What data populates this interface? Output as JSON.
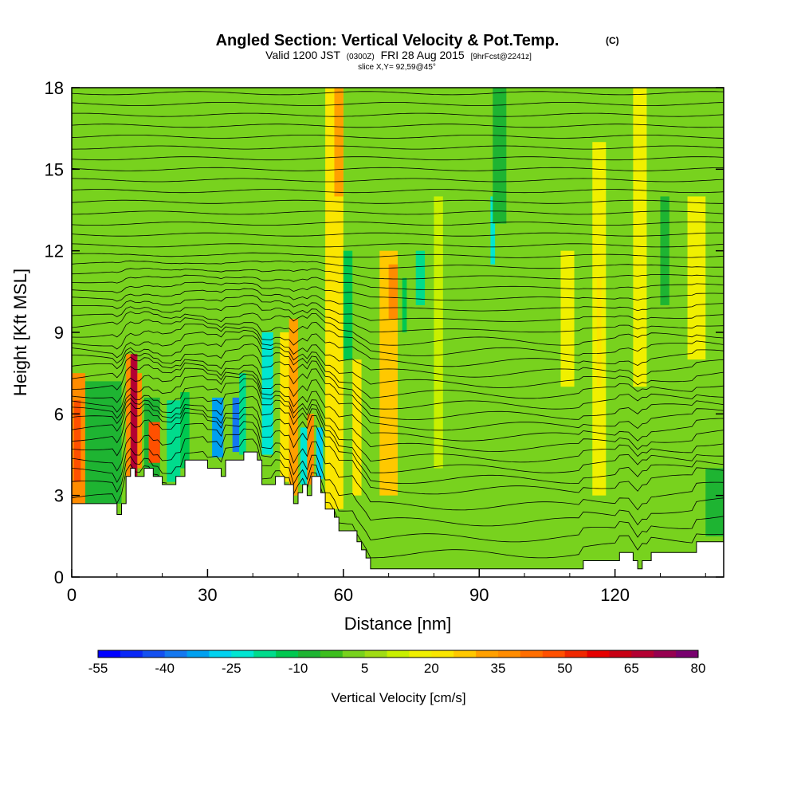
{
  "chart_data": {
    "type": "heatmap",
    "title": "Angled Section: Vertical Velocity & Pot.Temp.",
    "title_unit": "(C)",
    "subtitle_parts": [
      "Valid 1200 JST",
      "(0300Z)",
      "FRI 28 Aug 2015",
      "[9hrFcst@2241z]"
    ],
    "slice_label": "slice X,Y= 92,59@45°",
    "xlabel": "Distance [nm]",
    "ylabel": "Height [Kft MSL]",
    "xlim": [
      0,
      144
    ],
    "ylim": [
      0,
      18
    ],
    "x_ticks": [
      "0",
      "30",
      "60",
      "90",
      "120"
    ],
    "y_ticks": [
      "0",
      "3",
      "6",
      "9",
      "12",
      "15",
      "18"
    ],
    "colorbar": {
      "label": "Vertical Velocity [cm/s]",
      "tick_labels": [
        "-55",
        "-40",
        "-25",
        "-10",
        "5",
        "20",
        "35",
        "50",
        "65",
        "80"
      ],
      "min": -55,
      "max": 80,
      "step": 5,
      "colors": [
        "#0000ff",
        "#0a28f6",
        "#1450f0",
        "#1478f0",
        "#00a0f0",
        "#00d2f0",
        "#00e6d2",
        "#00dc8c",
        "#00c850",
        "#1eb432",
        "#3cbe1e",
        "#78d21e",
        "#a0dc14",
        "#c8f000",
        "#f0f000",
        "#fae600",
        "#ffc800",
        "#ffa000",
        "#ff8c00",
        "#ff6e00",
        "#ff5000",
        "#f02800",
        "#e60000",
        "#c80014",
        "#b40032",
        "#960050",
        "#78006e"
      ]
    },
    "velocity_cells": [
      {
        "x0": 0,
        "x1": 3,
        "y0": 2.7,
        "y1": 7.5,
        "v": 35
      },
      {
        "x0": 0.5,
        "x1": 2,
        "y0": 3.5,
        "y1": 6.5,
        "v": 45
      },
      {
        "x0": 3,
        "x1": 11,
        "y0": 2.7,
        "y1": 7.2,
        "v": -10
      },
      {
        "x0": 12,
        "x1": 13,
        "y0": 3.7,
        "y1": 8.2,
        "v": 35
      },
      {
        "x0": 13,
        "x1": 14.5,
        "y0": 3.7,
        "y1": 8.2,
        "v": 65
      },
      {
        "x0": 14.5,
        "x1": 15.5,
        "y0": 4,
        "y1": 7.5,
        "v": 35
      },
      {
        "x0": 16,
        "x1": 19.5,
        "y0": 3.7,
        "y1": 6.6,
        "v": -10
      },
      {
        "x0": 17,
        "x1": 19.5,
        "y0": 4.2,
        "y1": 5.7,
        "v": 45
      },
      {
        "x0": 21,
        "x1": 24,
        "y0": 3.5,
        "y1": 6.5,
        "v": -20
      },
      {
        "x0": 24,
        "x1": 26,
        "y0": 4,
        "y1": 6.8,
        "v": -15
      },
      {
        "x0": 31,
        "x1": 33.5,
        "y0": 4.4,
        "y1": 6.6,
        "v": -35
      },
      {
        "x0": 35.5,
        "x1": 37,
        "y0": 4.6,
        "y1": 6.6,
        "v": -40
      },
      {
        "x0": 37,
        "x1": 38.5,
        "y0": 4.5,
        "y1": 7.5,
        "v": -20
      },
      {
        "x0": 42,
        "x1": 44.5,
        "y0": 4.5,
        "y1": 9,
        "v": -25
      },
      {
        "x0": 46,
        "x1": 48,
        "y0": 3.5,
        "y1": 9,
        "v": 20
      },
      {
        "x0": 48,
        "x1": 50,
        "y0": 3,
        "y1": 9.5,
        "v": 30
      },
      {
        "x0": 50.5,
        "x1": 52,
        "y0": 3.4,
        "y1": 5.5,
        "v": -25
      },
      {
        "x0": 52,
        "x1": 53.5,
        "y0": 3.4,
        "y1": 6,
        "v": 35
      },
      {
        "x0": 54,
        "x1": 55.5,
        "y0": 3.6,
        "y1": 5.5,
        "v": -30
      },
      {
        "x0": 56,
        "x1": 60,
        "y0": 2.5,
        "y1": 18,
        "v": 20
      },
      {
        "x0": 58,
        "x1": 60,
        "y0": 14,
        "y1": 18,
        "v": 30
      },
      {
        "x0": 60,
        "x1": 62,
        "y0": 8,
        "y1": 12,
        "v": -15
      },
      {
        "x0": 62,
        "x1": 64,
        "y0": 3,
        "y1": 8,
        "v": 20
      },
      {
        "x0": 68,
        "x1": 72,
        "y0": 3,
        "y1": 12,
        "v": 25
      },
      {
        "x0": 70,
        "x1": 72,
        "y0": 9.5,
        "y1": 11.5,
        "v": 35
      },
      {
        "x0": 73,
        "x1": 74,
        "y0": 9,
        "y1": 11,
        "v": -15
      },
      {
        "x0": 76,
        "x1": 78,
        "y0": 10,
        "y1": 12,
        "v": -20
      },
      {
        "x0": 80,
        "x1": 82,
        "y0": 4,
        "y1": 14,
        "v": 10
      },
      {
        "x0": 92.5,
        "x1": 93.5,
        "y0": 11.5,
        "y1": 14,
        "v": -25
      },
      {
        "x0": 93,
        "x1": 96,
        "y0": 13,
        "y1": 18,
        "v": -10
      },
      {
        "x0": 108,
        "x1": 111,
        "y0": 7,
        "y1": 12,
        "v": 15
      },
      {
        "x0": 115,
        "x1": 118,
        "y0": 3,
        "y1": 16,
        "v": 15
      },
      {
        "x0": 116,
        "x1": 117,
        "y0": 7,
        "y1": 11,
        "v": 20
      },
      {
        "x0": 124,
        "x1": 127,
        "y0": 7,
        "y1": 18,
        "v": 15
      },
      {
        "x0": 130,
        "x1": 132,
        "y0": 10,
        "y1": 14,
        "v": -10
      },
      {
        "x0": 136,
        "x1": 140,
        "y0": 8,
        "y1": 14,
        "v": 15
      },
      {
        "x0": 140,
        "x1": 144,
        "y0": 1.5,
        "y1": 4,
        "v": -10
      }
    ],
    "terrain_height": [
      [
        0,
        2.7
      ],
      [
        10,
        2.7
      ],
      [
        10,
        2.3
      ],
      [
        11,
        2.3
      ],
      [
        11,
        2.7
      ],
      [
        12,
        2.7
      ],
      [
        12,
        3.7
      ],
      [
        13,
        3.7
      ],
      [
        13,
        4
      ],
      [
        14,
        4
      ],
      [
        14,
        3.7
      ],
      [
        16,
        3.7
      ],
      [
        16,
        4
      ],
      [
        18,
        4
      ],
      [
        18,
        3.7
      ],
      [
        20,
        3.7
      ],
      [
        20,
        3.4
      ],
      [
        23,
        3.4
      ],
      [
        23,
        3.7
      ],
      [
        25,
        3.7
      ],
      [
        25,
        4.3
      ],
      [
        30,
        4.3
      ],
      [
        30,
        4
      ],
      [
        33,
        4
      ],
      [
        33,
        3.7
      ],
      [
        34,
        3.7
      ],
      [
        34,
        4.3
      ],
      [
        38,
        4.3
      ],
      [
        38,
        4.6
      ],
      [
        41,
        4.6
      ],
      [
        41,
        4.3
      ],
      [
        42,
        4.3
      ],
      [
        42,
        3.4
      ],
      [
        45,
        3.4
      ],
      [
        45,
        3.7
      ],
      [
        47,
        3.7
      ],
      [
        47,
        3.4
      ],
      [
        49,
        3.4
      ],
      [
        49,
        2.7
      ],
      [
        50,
        2.7
      ],
      [
        50,
        3.1
      ],
      [
        51,
        3.1
      ],
      [
        51,
        3.4
      ],
      [
        52,
        3.4
      ],
      [
        52,
        3
      ],
      [
        53,
        3
      ],
      [
        53,
        3.7
      ],
      [
        55,
        3.7
      ],
      [
        55,
        3.1
      ],
      [
        56,
        3.1
      ],
      [
        56,
        2.5
      ],
      [
        58,
        2.5
      ],
      [
        58,
        2.2
      ],
      [
        59,
        2.2
      ],
      [
        59,
        1.7
      ],
      [
        63,
        1.7
      ],
      [
        63,
        1.3
      ],
      [
        64,
        1.3
      ],
      [
        64,
        1
      ],
      [
        65,
        1
      ],
      [
        65,
        0.7
      ],
      [
        66,
        0.7
      ],
      [
        66,
        0.3
      ],
      [
        113,
        0.3
      ],
      [
        113,
        0.6
      ],
      [
        121,
        0.6
      ],
      [
        121,
        0.9
      ],
      [
        124,
        0.9
      ],
      [
        124,
        0.6
      ],
      [
        125,
        0.6
      ],
      [
        125,
        0.3
      ],
      [
        126,
        0.3
      ],
      [
        126,
        0.6
      ],
      [
        128,
        0.6
      ],
      [
        128,
        0.9
      ],
      [
        138,
        0.9
      ],
      [
        138,
        1.3
      ],
      [
        144,
        1.3
      ]
    ],
    "theta_contour_base_heights": [
      0.6,
      1.2,
      1.8,
      2.4,
      3,
      3.4,
      3.8,
      4.2,
      4.6,
      5,
      5.4,
      5.8,
      6.2,
      6.6,
      7,
      7.4,
      7.8,
      8.2,
      8.6,
      9,
      9.4,
      9.8,
      10.2,
      10.6,
      11,
      11.4,
      11.8,
      12.2,
      12.6,
      13,
      13.4,
      13.8,
      14.2,
      14.6,
      15,
      15.4,
      15.8,
      16.2,
      16.6,
      17,
      17.4,
      17.8
    ]
  }
}
